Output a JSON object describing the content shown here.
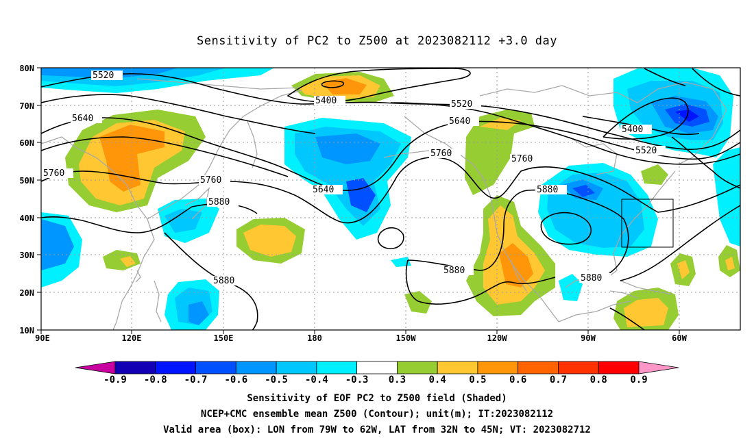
{
  "title": "Sensitivity of PC2 to Z500 at 2023082112 +3.0 day",
  "map": {
    "lon_labels": [
      "90E",
      "120E",
      "150E",
      "180",
      "150W",
      "120W",
      "90W",
      "60W"
    ],
    "lat_labels": [
      "80N",
      "70N",
      "60N",
      "50N",
      "40N",
      "30N",
      "20N",
      "10N"
    ],
    "contour_labels": [
      "5520",
      "5640",
      "5760",
      "5400",
      "5760",
      "5880",
      "5640",
      "5880",
      "5520",
      "5640",
      "5760",
      "5760",
      "5880",
      "5880",
      "5880",
      "5400",
      "5520"
    ],
    "valid_box": {
      "lon_from": "79W",
      "lon_to": "62W",
      "lat_from": "32N",
      "lat_to": "45N"
    }
  },
  "colorbar": {
    "labels": [
      "-0.9",
      "-0.8",
      "-0.7",
      "-0.6",
      "-0.5",
      "-0.4",
      "-0.3",
      "0.3",
      "0.4",
      "0.5",
      "0.6",
      "0.7",
      "0.8",
      "0.9"
    ],
    "colors": [
      "#c800a0",
      "#1400b4",
      "#0014ff",
      "#0050ff",
      "#0096ff",
      "#00c8ff",
      "#00f0ff",
      "#ffffff",
      "#96cd32",
      "#ffc832",
      "#ff960a",
      "#ff6400",
      "#ff3200",
      "#ff0000",
      "#ff96c8"
    ]
  },
  "footer": {
    "line1": "Sensitivity of EOF PC2 to Z500 field (Shaded)",
    "line2": "NCEP+CMC ensemble mean Z500 (Contour); unit(m); IT:2023082112",
    "line3": "Valid area (box): LON from 79W to 62W, LAT from 32N to 45N; VT: 2023082712"
  }
}
